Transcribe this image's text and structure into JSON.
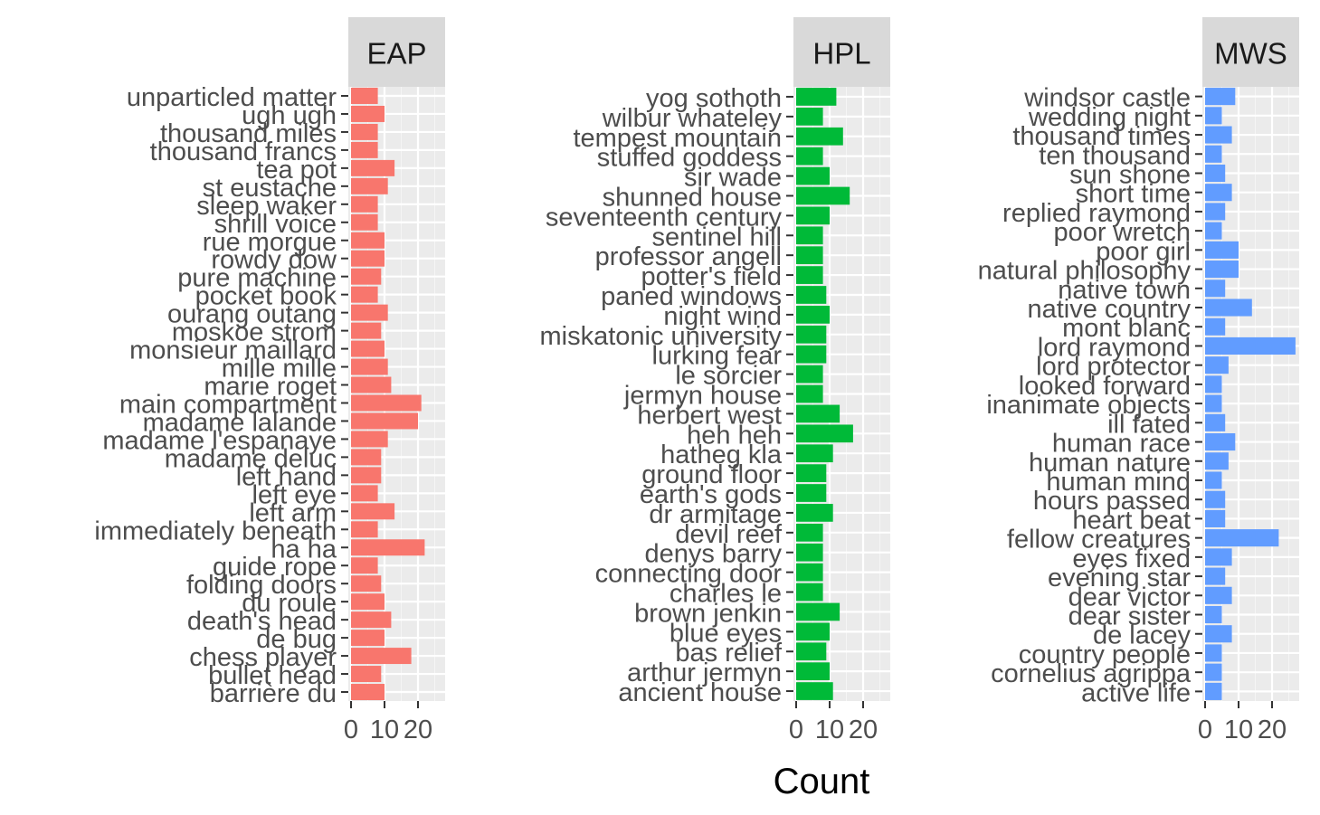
{
  "chart_data": {
    "type": "bar",
    "orientation": "horizontal",
    "xlabel": "Count",
    "ylabel": "",
    "xlim": [
      0,
      27
    ],
    "x_ticks": [
      0,
      10,
      20
    ],
    "grid": true,
    "legend": "none",
    "panels": [
      {
        "name": "EAP",
        "color": "#F8766D",
        "categories": [
          "unparticled matter",
          "ugh ugh",
          "thousand miles",
          "thousand francs",
          "tea pot",
          "st eustache",
          "sleep waker",
          "shrill voice",
          "rue morgue",
          "rowdy dow",
          "pure machine",
          "pocket book",
          "ourang outang",
          "moskoe strom",
          "monsieur maillard",
          "mille mille",
          "marie roget",
          "main compartment",
          "madame lalande",
          "madame l'espanaye",
          "madame deluc",
          "left hand",
          "left eye",
          "left arm",
          "immediately beneath",
          "ha ha",
          "guide rope",
          "folding doors",
          "du roule",
          "death's head",
          "de bug",
          "chess player",
          "bullet head",
          "barrière du"
        ],
        "values": [
          8,
          10,
          8,
          8,
          13,
          11,
          8,
          8,
          10,
          10,
          9,
          8,
          11,
          9,
          10,
          11,
          12,
          21,
          20,
          11,
          9,
          9,
          8,
          13,
          8,
          22,
          8,
          9,
          10,
          12,
          10,
          18,
          9,
          10
        ]
      },
      {
        "name": "HPL",
        "color": "#00BA38",
        "categories": [
          "yog sothoth",
          "wilbur whateley",
          "tempest mountain",
          "stuffed goddess",
          "sir wade",
          "shunned house",
          "seventeenth century",
          "sentinel hill",
          "professor angell",
          "potter's field",
          "paned windows",
          "night wind",
          "miskatonic university",
          "lurking fear",
          "le sorcier",
          "jermyn house",
          "herbert west",
          "heh heh",
          "hatheg kla",
          "ground floor",
          "earth's gods",
          "dr armitage",
          "devil reef",
          "denys barry",
          "connecting door",
          "charles le",
          "brown jenkin",
          "blue eyes",
          "bas relief",
          "arthur jermyn",
          "ancient house"
        ],
        "values": [
          12,
          8,
          14,
          8,
          10,
          16,
          10,
          8,
          8,
          8,
          9,
          10,
          9,
          9,
          8,
          8,
          13,
          17,
          11,
          9,
          9,
          11,
          8,
          8,
          8,
          8,
          13,
          10,
          9,
          10,
          11
        ]
      },
      {
        "name": "MWS",
        "color": "#619CFF",
        "categories": [
          "windsor castle",
          "wedding night",
          "thousand times",
          "ten thousand",
          "sun shone",
          "short time",
          "replied raymond",
          "poor wretch",
          "poor girl",
          "natural philosophy",
          "native town",
          "native country",
          "mont blanc",
          "lord raymond",
          "lord protector",
          "looked forward",
          "inanimate objects",
          "ill fated",
          "human race",
          "human nature",
          "human mind",
          "hours passed",
          "heart beat",
          "fellow creatures",
          "eyes fixed",
          "evening star",
          "dear victor",
          "dear sister",
          "de lacey",
          "country people",
          "cornelius agrippa",
          "active life"
        ],
        "values": [
          9,
          5,
          8,
          5,
          6,
          8,
          6,
          5,
          10,
          10,
          6,
          14,
          6,
          27,
          7,
          5,
          5,
          6,
          9,
          7,
          5,
          6,
          6,
          22,
          8,
          6,
          8,
          5,
          8,
          5,
          5,
          5
        ]
      }
    ]
  }
}
